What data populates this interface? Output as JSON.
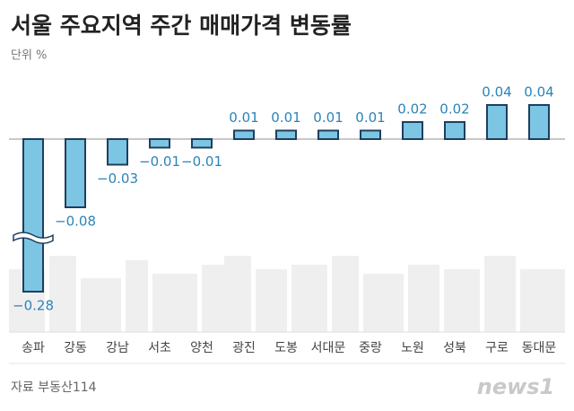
{
  "chart_data": {
    "type": "bar",
    "title": "서울 주요지역 주간 매매가격 변동률",
    "subtitle": "단위 %",
    "source": "자료 부동산114",
    "logo": "news1",
    "categories": [
      "송파",
      "강동",
      "강남",
      "서초",
      "양천",
      "광진",
      "도봉",
      "서대문",
      "중랑",
      "노원",
      "성북",
      "구로",
      "동대문"
    ],
    "values": [
      -0.28,
      -0.08,
      -0.03,
      -0.01,
      -0.01,
      0.01,
      0.01,
      0.01,
      0.01,
      0.02,
      0.02,
      0.04,
      0.04
    ],
    "value_labels": [
      "−0.28",
      "−0.08",
      "−0.03",
      "−0.01",
      "−0.01",
      "0.01",
      "0.01",
      "0.01",
      "0.01",
      "0.02",
      "0.02",
      "0.04",
      "0.04"
    ],
    "color": "#7cc6e4",
    "edge_color": "#1d3f5e"
  }
}
